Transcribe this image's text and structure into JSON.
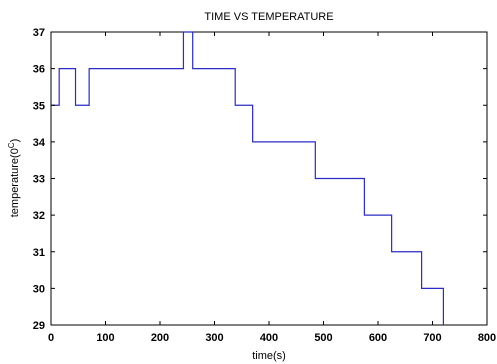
{
  "chart_data": {
    "type": "line",
    "title": "TIME VS TEMPERATURE",
    "xlabel": "time(s)",
    "ylabel_main": "temperature(0",
    "ylabel_sup": "C",
    "ylabel_end": ")",
    "xlim": [
      0,
      800
    ],
    "ylim": [
      29,
      37
    ],
    "xticks": [
      0,
      100,
      200,
      300,
      400,
      500,
      600,
      700,
      800
    ],
    "yticks": [
      29,
      30,
      31,
      32,
      33,
      34,
      35,
      36,
      37
    ],
    "grid": false,
    "line_color": "#2b2bc8",
    "series": [
      {
        "x": [
          0,
          15,
          15,
          45,
          45,
          70,
          70,
          88,
          88,
          243,
          243,
          260,
          260,
          338,
          338,
          370,
          370,
          485,
          485,
          575,
          575,
          625,
          625,
          680,
          680,
          720,
          720
        ],
        "y": [
          35,
          35,
          36,
          36,
          35,
          35,
          36,
          36,
          36,
          36,
          37,
          37,
          36,
          36,
          35,
          35,
          34,
          34,
          33,
          33,
          32,
          32,
          31,
          31,
          30,
          30,
          29
        ]
      }
    ]
  }
}
